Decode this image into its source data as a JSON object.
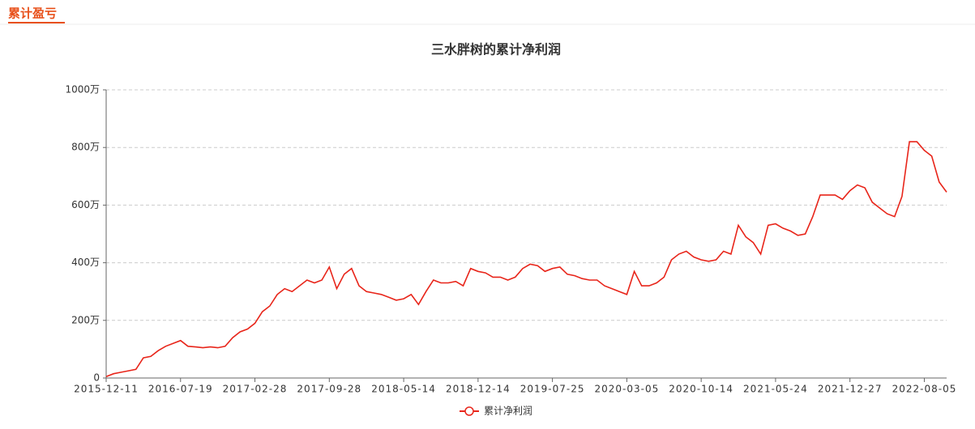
{
  "header": {
    "tab": "累计盈亏"
  },
  "chart_data": {
    "type": "line",
    "title": "三水胖树的累计净利润",
    "categories": [
      "2015-12-11",
      null,
      null,
      null,
      null,
      null,
      null,
      null,
      null,
      null,
      "2016-07-19",
      null,
      null,
      null,
      null,
      null,
      null,
      null,
      null,
      null,
      "2017-02-28",
      null,
      null,
      null,
      null,
      null,
      null,
      null,
      null,
      null,
      "2017-09-28",
      null,
      null,
      null,
      null,
      null,
      null,
      null,
      null,
      null,
      "2018-05-14",
      null,
      null,
      null,
      null,
      null,
      null,
      null,
      null,
      null,
      "2018-12-14",
      null,
      null,
      null,
      null,
      null,
      null,
      null,
      null,
      null,
      "2019-07-25",
      null,
      null,
      null,
      null,
      null,
      null,
      null,
      null,
      null,
      "2020-03-05",
      null,
      null,
      null,
      null,
      null,
      null,
      null,
      null,
      null,
      "2020-10-14",
      null,
      null,
      null,
      null,
      null,
      null,
      null,
      null,
      null,
      "2021-05-24",
      null,
      null,
      null,
      null,
      null,
      null,
      null,
      null,
      null,
      "2021-12-27",
      null,
      null,
      null,
      null,
      null,
      null,
      null,
      null,
      null,
      "2022-08-05",
      null,
      null,
      null
    ],
    "series": [
      {
        "name": "累计净利润",
        "color": "#e8251a",
        "values": [
          5,
          15,
          20,
          25,
          30,
          70,
          75,
          95,
          110,
          120,
          130,
          110,
          108,
          105,
          108,
          105,
          110,
          140,
          160,
          170,
          190,
          230,
          250,
          290,
          310,
          300,
          320,
          340,
          330,
          340,
          385,
          310,
          360,
          380,
          320,
          300,
          295,
          290,
          280,
          270,
          275,
          290,
          255,
          300,
          340,
          330,
          330,
          335,
          320,
          380,
          370,
          365,
          350,
          350,
          340,
          350,
          380,
          395,
          390,
          370,
          380,
          385,
          360,
          355,
          345,
          340,
          340,
          320,
          310,
          300,
          290,
          370,
          320,
          320,
          330,
          350,
          410,
          430,
          440,
          420,
          410,
          405,
          410,
          440,
          430,
          530,
          490,
          470,
          430,
          530,
          535,
          520,
          510,
          495,
          500,
          560,
          635,
          635,
          635,
          620,
          650,
          670,
          660,
          610,
          590,
          570,
          560,
          630,
          820,
          820,
          790,
          770,
          680,
          645
        ]
      }
    ],
    "ylim": [
      0,
      1000
    ],
    "yticks": [
      0,
      {
        "value": 200,
        "label": "200万"
      },
      {
        "value": 400,
        "label": "400万"
      },
      {
        "value": 600,
        "label": "600万"
      },
      {
        "value": 800,
        "label": "800万"
      },
      {
        "value": 1000,
        "label": "1000万"
      }
    ],
    "grid": true,
    "legend": "bottom"
  }
}
